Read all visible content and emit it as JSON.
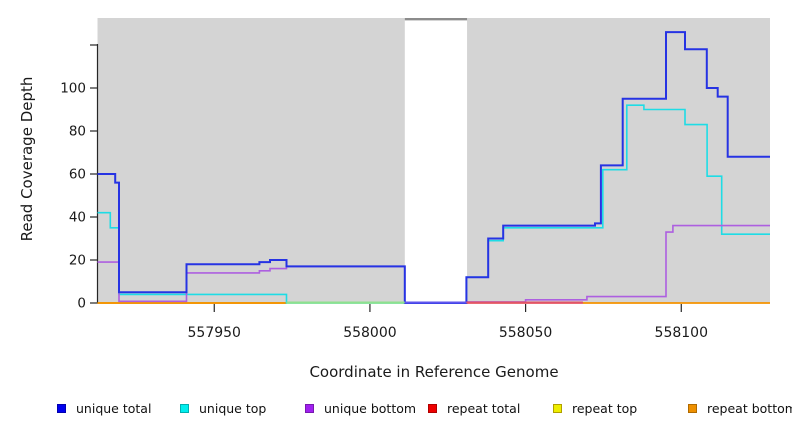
{
  "axis_titles": {
    "ylabel": "Read Coverage Depth",
    "xlabel": "Coordinate in Reference Genome"
  },
  "legend": {
    "items": [
      {
        "label": "unique total",
        "fill": "#0000ee",
        "border": "#0000b0"
      },
      {
        "label": "unique top",
        "fill": "#00eeee",
        "border": "#00b0b0"
      },
      {
        "label": "unique bottom",
        "fill": "#a020f0",
        "border": "#7818b0"
      },
      {
        "label": "repeat total",
        "fill": "#ee0000",
        "border": "#b00000"
      },
      {
        "label": "repeat top",
        "fill": "#eeee00",
        "border": "#b0a000"
      },
      {
        "label": "repeat bottom",
        "fill": "#ee9000",
        "border": "#b06a00"
      }
    ]
  },
  "chart_data": {
    "type": "step",
    "title": "",
    "xlabel": "Coordinate in Reference Genome",
    "ylabel": "Read Coverage Depth",
    "x_range": [
      557912.5,
      558128.5
    ],
    "y_range": [
      0,
      126
    ],
    "x_ticks": [
      557950,
      558000,
      558050,
      558100
    ],
    "y_ticks": [
      0,
      20,
      40,
      60,
      80,
      100
    ],
    "y_extra_unlabeled_tick": 120,
    "panel_color": "#d4d4d4",
    "gap_region": {
      "from": 558011.2,
      "to": 558031.2
    },
    "gap_top_line_color": "#8c8c8c",
    "series": [
      {
        "name": "repeat total",
        "color": "#e60000",
        "width": 1.6,
        "segments": [
          [
            557912.5,
            557973.2,
            0
          ],
          [
            558031.0,
            558068.4,
            0
          ]
        ]
      },
      {
        "name": "repeat top",
        "color": "#e6e600",
        "width": 1.6,
        "segments": [
          [
            557912.5,
            558011.2,
            0
          ]
        ]
      },
      {
        "name": "repeat bottom",
        "color": "#f59300",
        "width": 1.8,
        "segments": [
          [
            557912.5,
            557973.2,
            0
          ],
          [
            558068.4,
            558128.5,
            0
          ]
        ]
      },
      {
        "name": "unique top",
        "color": "#1edce5",
        "width": 1.6,
        "segments": [
          [
            557912.5,
            557916.6,
            42
          ],
          [
            557916.6,
            557919.4,
            35
          ],
          [
            557919.4,
            557973.2,
            4
          ],
          [
            557973.2,
            558031.0,
            0
          ],
          [
            558031.0,
            558038.0,
            12
          ],
          [
            558038.0,
            558042.8,
            29
          ],
          [
            558042.8,
            558074.8,
            35
          ],
          [
            558074.8,
            558082.5,
            62
          ],
          [
            558082.5,
            558088.0,
            92
          ],
          [
            558088.0,
            558101.2,
            90
          ],
          [
            558101.2,
            558108.3,
            83
          ],
          [
            558108.3,
            558113.0,
            59
          ],
          [
            558113.0,
            558128.5,
            32
          ]
        ]
      },
      {
        "name": "unique bottom",
        "color": "#ad5fe0",
        "width": 1.6,
        "segments": [
          [
            557912.5,
            557919.4,
            19
          ],
          [
            557919.4,
            557941.1,
            0.8
          ],
          [
            557941.1,
            557964.5,
            14
          ],
          [
            557964.5,
            557967.9,
            15
          ],
          [
            557967.9,
            557973.2,
            16
          ],
          [
            557973.2,
            558011.2,
            17
          ],
          [
            558011.2,
            558031.0,
            0
          ],
          [
            558031.0,
            558050.0,
            0.5
          ],
          [
            558050.0,
            558069.7,
            1.5
          ],
          [
            558069.7,
            558095.1,
            3
          ],
          [
            558095.1,
            558097.3,
            33
          ],
          [
            558097.3,
            558128.5,
            36
          ]
        ]
      },
      {
        "name": "unique total",
        "color": "#2633e3",
        "width": 2,
        "segments": [
          [
            557912.5,
            557918.2,
            60
          ],
          [
            557918.2,
            557919.4,
            56
          ],
          [
            557919.4,
            557941.1,
            5
          ],
          [
            557941.1,
            557964.5,
            18
          ],
          [
            557964.5,
            557967.9,
            19
          ],
          [
            557967.9,
            557973.2,
            20
          ],
          [
            557973.2,
            558011.2,
            17
          ],
          [
            558011.2,
            558031.0,
            0
          ],
          [
            558031.0,
            558038.0,
            12
          ],
          [
            558038.0,
            558042.8,
            30
          ],
          [
            558042.8,
            558072.3,
            36
          ],
          [
            558072.3,
            558074.2,
            37
          ],
          [
            558074.2,
            558081.2,
            64
          ],
          [
            558081.2,
            558095.1,
            95
          ],
          [
            558095.1,
            558101.2,
            126
          ],
          [
            558101.2,
            558108.2,
            118
          ],
          [
            558108.2,
            558111.7,
            100
          ],
          [
            558111.7,
            558114.9,
            96
          ],
          [
            558114.9,
            558128.5,
            68
          ]
        ]
      }
    ],
    "baseline_overlap_segments": [
      {
        "from": 557973.2,
        "to": 558011.2,
        "color": "#8fe08f",
        "note": "unique-top + repeat-top overlap at 0"
      },
      {
        "from": 558011.2,
        "to": 558031.2,
        "color": "#5f55ee",
        "note": "unique lines at 0 across gap"
      },
      {
        "from": 558031.0,
        "to": 558068.4,
        "color": "#e05468",
        "note": "repeat total at 0"
      }
    ]
  }
}
